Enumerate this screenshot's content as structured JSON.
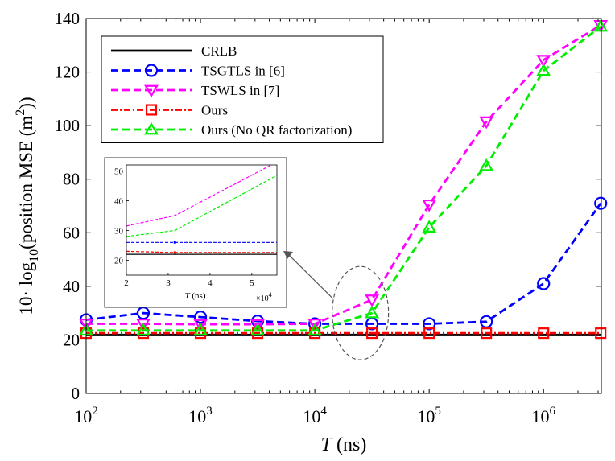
{
  "chart_data": {
    "type": "line",
    "title": "",
    "xlabel": "T",
    "xlabel_unit": "(ns)",
    "ylabel": "10· log10(position MSE (m2))",
    "ylabel_parts": {
      "prefix": "10· log",
      "sub": "10",
      "mid": "(position MSE (m",
      "sup": "2",
      "suffix": "))"
    },
    "x_scale": "log",
    "xlim": [
      100,
      3200000
    ],
    "ylim": [
      0,
      140
    ],
    "x_ticks": [
      {
        "value": 100,
        "base": "10",
        "exp": "2"
      },
      {
        "value": 1000,
        "base": "10",
        "exp": "3"
      },
      {
        "value": 10000,
        "base": "10",
        "exp": "4"
      },
      {
        "value": 100000,
        "base": "10",
        "exp": "5"
      },
      {
        "value": 1000000,
        "base": "10",
        "exp": "6"
      }
    ],
    "y_ticks": [
      "0",
      "20",
      "40",
      "60",
      "80",
      "100",
      "120",
      "140"
    ],
    "x": [
      100,
      316,
      1000,
      3160,
      10000,
      31600,
      100000,
      316000,
      1000000,
      3160000
    ],
    "series": [
      {
        "name": "CRLB",
        "color": "#000000",
        "dash": "solid",
        "marker": "none",
        "values": [
          21.8,
          21.8,
          21.8,
          21.8,
          21.8,
          21.8,
          21.8,
          21.8,
          21.8,
          21.8
        ]
      },
      {
        "name": "TSGTLS in [6]",
        "color": "#0000ff",
        "dash": "dashed",
        "marker": "circle",
        "values": [
          27.5,
          30,
          28.5,
          27,
          26,
          26,
          26,
          26.8,
          41,
          71
        ]
      },
      {
        "name": "TSWLS in [7]",
        "color": "#ff00ff",
        "dash": "dashed",
        "marker": "triangle-down",
        "values": [
          26,
          26,
          25.8,
          25.8,
          26,
          35,
          70.5,
          101.5,
          124.5,
          137.5
        ]
      },
      {
        "name": "Ours",
        "color": "#ff0000",
        "dash": "dashdot",
        "marker": "square",
        "values": [
          22.5,
          22.5,
          22.5,
          22.5,
          22.5,
          22.5,
          22.5,
          22.5,
          22.5,
          22.5
        ]
      },
      {
        "name": "Ours (No QR factorization)",
        "color": "#00ee00",
        "dash": "dashed",
        "marker": "triangle-up",
        "values": [
          23.5,
          23.5,
          23.5,
          23.5,
          23.5,
          30,
          62,
          85,
          120.5,
          137
        ]
      }
    ],
    "legend_location": "top-left",
    "inset": {
      "xlim": [
        2,
        5.6
      ],
      "ylim": [
        15,
        52
      ],
      "x_ticks": [
        "2",
        "3",
        "4",
        "5"
      ],
      "y_ticks": [
        "20",
        "30",
        "40",
        "50"
      ],
      "xlabel": "T",
      "xlabel_unit": "(ns)",
      "x_multiplier_base": "×10",
      "x_multiplier_exp": "4",
      "series": [
        {
          "name": "TSWLS in [7]",
          "color": "#ff00ff",
          "x": [
            2,
            3.16,
            5.6
          ],
          "values": [
            31.5,
            35,
            53
          ]
        },
        {
          "name": "Ours (No QR factorization)",
          "color": "#00ee00",
          "x": [
            2,
            3.16,
            5.6
          ],
          "values": [
            28,
            30,
            48.5
          ]
        },
        {
          "name": "TSGTLS in [6]",
          "color": "#0000ff",
          "x": [
            2,
            3.16,
            5.6
          ],
          "values": [
            26,
            26,
            26
          ]
        },
        {
          "name": "Ours",
          "color": "#ff0000",
          "x": [
            2,
            3.16,
            5.6
          ],
          "values": [
            23,
            22.6,
            22.6
          ]
        },
        {
          "name": "CRLB",
          "color": "#000000",
          "x": [
            2,
            3.16,
            5.6
          ],
          "values": [
            22,
            22,
            22
          ]
        }
      ]
    },
    "zoom_region": {
      "x_center": 25000,
      "y_center": 30
    }
  }
}
